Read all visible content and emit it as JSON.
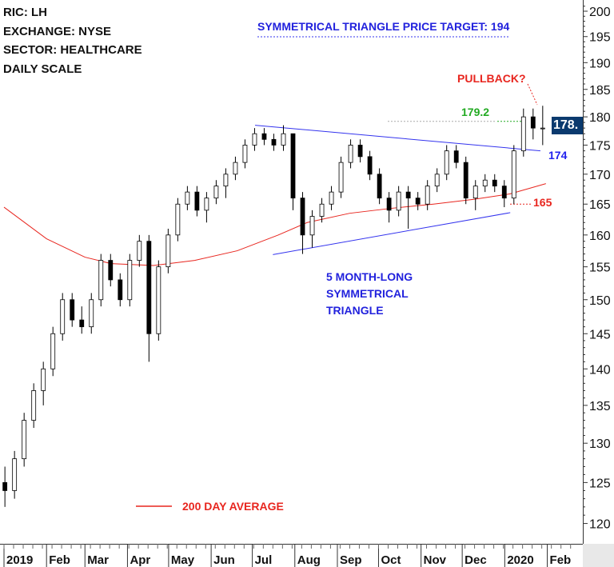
{
  "info": {
    "ric": "RIC: LH",
    "exchange": "EXCHANGE: NYSE",
    "sector": "SECTOR: HEALTHCARE",
    "scale": "DAILY SCALE"
  },
  "annotations": {
    "target": "SYMMETRICAL TRIANGLE PRICE TARGET: 194",
    "pullback": "PULLBACK?",
    "resistance": "179.2",
    "breakout": "174",
    "support": "165",
    "pattern_line1": "5 MONTH-LONG",
    "pattern_line2": "SYMMETRICAL",
    "pattern_line3": "TRIANGLE",
    "legend": "200 DAY AVERAGE"
  },
  "last_price_label": "178.",
  "chart_data": {
    "type": "candlestick",
    "y_scale": "log",
    "ylim": [
      117,
      203
    ],
    "yticks": [
      120,
      125,
      130,
      135,
      140,
      145,
      150,
      155,
      160,
      165,
      170,
      175,
      180,
      185,
      190,
      195,
      200
    ],
    "xticks": [
      {
        "date": "2019-01-01",
        "label": "2019"
      },
      {
        "date": "2019-02-01",
        "label": "Feb"
      },
      {
        "date": "2019-03-01",
        "label": "Mar"
      },
      {
        "date": "2019-04-01",
        "label": "Apr"
      },
      {
        "date": "2019-05-01",
        "label": "May"
      },
      {
        "date": "2019-06-01",
        "label": "Jun"
      },
      {
        "date": "2019-07-01",
        "label": "Jul"
      },
      {
        "date": "2019-08-01",
        "label": "Aug"
      },
      {
        "date": "2019-09-01",
        "label": "Sep"
      },
      {
        "date": "2019-10-01",
        "label": "Oct"
      },
      {
        "date": "2019-11-01",
        "label": "Nov"
      },
      {
        "date": "2019-12-01",
        "label": "Dec"
      },
      {
        "date": "2020-01-01",
        "label": "2020"
      },
      {
        "date": "2020-02-01",
        "label": "Feb"
      }
    ],
    "xlim": [
      "2019-01-01",
      "2020-02-24"
    ],
    "candles_ohlc": [
      [
        "2019-01-04",
        125,
        127,
        122,
        124
      ],
      [
        "2019-01-11",
        124,
        129,
        123,
        128
      ],
      [
        "2019-01-18",
        128,
        134,
        127,
        133
      ],
      [
        "2019-01-25",
        133,
        138,
        132,
        137
      ],
      [
        "2019-02-01",
        137,
        141,
        135,
        140
      ],
      [
        "2019-02-08",
        140,
        146,
        139,
        145
      ],
      [
        "2019-02-15",
        145,
        151,
        144,
        150
      ],
      [
        "2019-02-22",
        150,
        151,
        146,
        147
      ],
      [
        "2019-03-01",
        147,
        149,
        145,
        146
      ],
      [
        "2019-03-08",
        146,
        151,
        145,
        150
      ],
      [
        "2019-03-15",
        150,
        157,
        149,
        156
      ],
      [
        "2019-03-22",
        156,
        157,
        152,
        153
      ],
      [
        "2019-03-29",
        153,
        154,
        149,
        150
      ],
      [
        "2019-04-05",
        150,
        157,
        149,
        156
      ],
      [
        "2019-04-12",
        156,
        160,
        155,
        159
      ],
      [
        "2019-04-19",
        159,
        160,
        141,
        145
      ],
      [
        "2019-04-26",
        145,
        156,
        144,
        155
      ],
      [
        "2019-05-03",
        155,
        161,
        154,
        160
      ],
      [
        "2019-05-10",
        160,
        166,
        159,
        165
      ],
      [
        "2019-05-17",
        165,
        168,
        164,
        167
      ],
      [
        "2019-05-24",
        167,
        168,
        163,
        164
      ],
      [
        "2019-05-31",
        164,
        167,
        162,
        166
      ],
      [
        "2019-06-07",
        166,
        169,
        165,
        168
      ],
      [
        "2019-06-14",
        168,
        171,
        166,
        170
      ],
      [
        "2019-06-21",
        170,
        173,
        169,
        172
      ],
      [
        "2019-06-28",
        172,
        176,
        171,
        175
      ],
      [
        "2019-07-05",
        175,
        178,
        174,
        177
      ],
      [
        "2019-07-12",
        177,
        178,
        175,
        176
      ],
      [
        "2019-07-19",
        176,
        177,
        174,
        175
      ],
      [
        "2019-07-26",
        175,
        178.5,
        174,
        177
      ],
      [
        "2019-08-02",
        177,
        177,
        164,
        166
      ],
      [
        "2019-08-09",
        166,
        167,
        157,
        160
      ],
      [
        "2019-08-16",
        160,
        164,
        158,
        163
      ],
      [
        "2019-08-23",
        163,
        166,
        162,
        165
      ],
      [
        "2019-08-30",
        165,
        168,
        164,
        167
      ],
      [
        "2019-09-06",
        167,
        173,
        166,
        172
      ],
      [
        "2019-09-13",
        172,
        176,
        171,
        175
      ],
      [
        "2019-09-20",
        175,
        176,
        172,
        173
      ],
      [
        "2019-09-27",
        173,
        174,
        169,
        170
      ],
      [
        "2019-10-04",
        170,
        171,
        165,
        166
      ],
      [
        "2019-10-11",
        166,
        167,
        162,
        164
      ],
      [
        "2019-10-18",
        164,
        168,
        163,
        167
      ],
      [
        "2019-10-25",
        167,
        168,
        161,
        166
      ],
      [
        "2019-11-01",
        166,
        167,
        164,
        165
      ],
      [
        "2019-11-08",
        165,
        169,
        164,
        168
      ],
      [
        "2019-11-15",
        168,
        171,
        167,
        170
      ],
      [
        "2019-11-22",
        170,
        175,
        169,
        174
      ],
      [
        "2019-11-29",
        174,
        175,
        171,
        172
      ],
      [
        "2019-12-06",
        172,
        173,
        165,
        166
      ],
      [
        "2019-12-13",
        166,
        169,
        164,
        168
      ],
      [
        "2019-12-20",
        168,
        170,
        167,
        169
      ],
      [
        "2019-12-27",
        169,
        170,
        167,
        168
      ],
      [
        "2020-01-03",
        168,
        169,
        164.5,
        166
      ],
      [
        "2020-01-10",
        166,
        175,
        165,
        174
      ],
      [
        "2020-01-17",
        174,
        181.5,
        173,
        180
      ],
      [
        "2020-01-24",
        180,
        181.5,
        176,
        178
      ],
      [
        "2020-01-31",
        178,
        182,
        175,
        178
      ]
    ],
    "series": [
      {
        "name": "200 DAY AVERAGE",
        "color": "#e8261f",
        "points": [
          [
            "2019-01-01",
            164.5
          ],
          [
            "2019-02-01",
            159.4
          ],
          [
            "2019-03-01",
            156.5
          ],
          [
            "2019-03-20",
            155.5
          ],
          [
            "2019-04-20",
            155.2
          ],
          [
            "2019-05-20",
            156
          ],
          [
            "2019-06-20",
            157.5
          ],
          [
            "2019-07-20",
            160
          ],
          [
            "2019-08-10",
            162
          ],
          [
            "2019-09-10",
            163.5
          ],
          [
            "2019-10-10",
            164.3
          ],
          [
            "2019-11-10",
            165
          ],
          [
            "2019-12-10",
            165.8
          ],
          [
            "2020-01-05",
            166.7
          ],
          [
            "2020-01-31",
            168.4
          ]
        ]
      }
    ],
    "trendlines": [
      {
        "name": "triangle-upper",
        "color": "#3333ee",
        "from": [
          "2019-07-03",
          178.5
        ],
        "to": [
          "2020-01-27",
          174
        ]
      },
      {
        "name": "triangle-lower",
        "color": "#3333ee",
        "from": [
          "2019-07-16",
          156.9
        ],
        "to": [
          "2020-01-05",
          163.6
        ]
      }
    ],
    "levels": [
      {
        "name": "resistance",
        "value": 179.2,
        "color": "#22aa22"
      },
      {
        "name": "support",
        "value": 165,
        "color": "#e8261f"
      },
      {
        "name": "target",
        "value": 194,
        "color": "#3333ee"
      }
    ],
    "colors": {
      "up": "#ffffff",
      "down": "#000000",
      "accent": "#0b3a6e"
    }
  }
}
